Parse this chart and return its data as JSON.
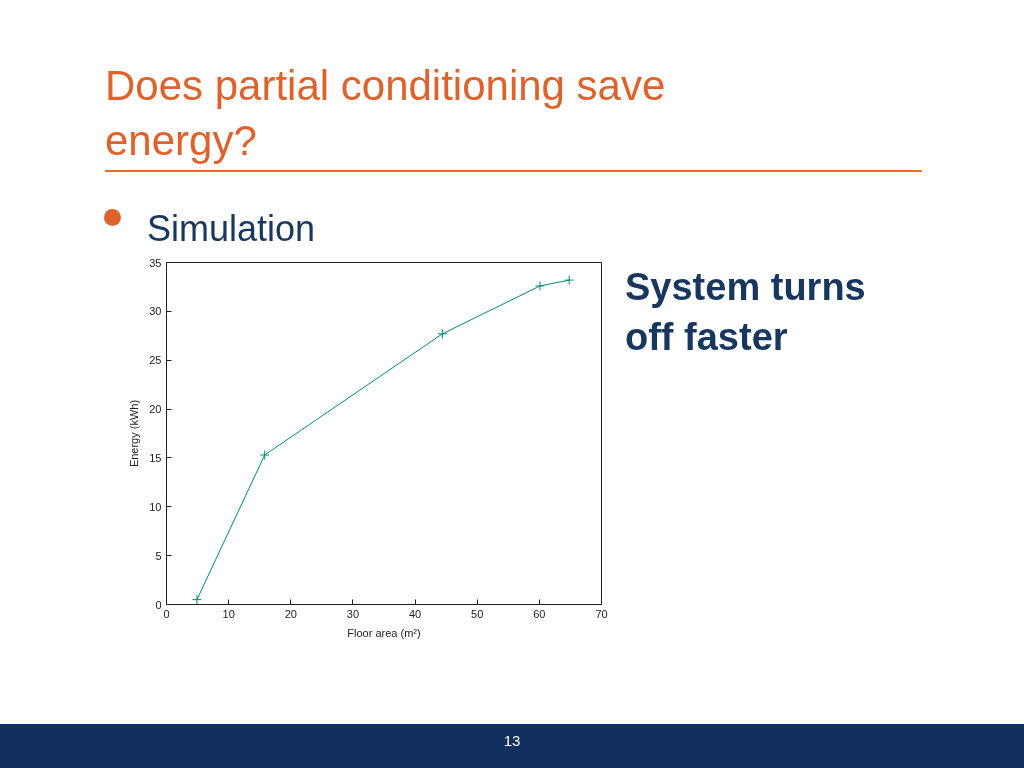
{
  "chart_data": {
    "type": "line",
    "title": "Does partial conditioning save energy?",
    "subtitle": "Simulation",
    "xlabel": "Floor area (m²)",
    "ylabel": "Energy (kWh)",
    "x": [
      4.9,
      15.8,
      44.4,
      60.1,
      64.8
    ],
    "series": [
      {
        "color": "#008b7a",
        "values": [
          0.5,
          15.3,
          27.7,
          32.6,
          33.2
        ]
      }
    ],
    "xlim": [
      0,
      70
    ],
    "ylim": [
      0,
      35
    ],
    "xticks": [
      0,
      10,
      20,
      30,
      40,
      50,
      60,
      70
    ],
    "yticks": [
      0,
      5,
      10,
      15,
      20,
      25,
      30,
      35
    ],
    "grid": false,
    "marker": "cross",
    "line_style": "solid",
    "annotations": [
      "System turns off faster",
      "13"
    ]
  }
}
